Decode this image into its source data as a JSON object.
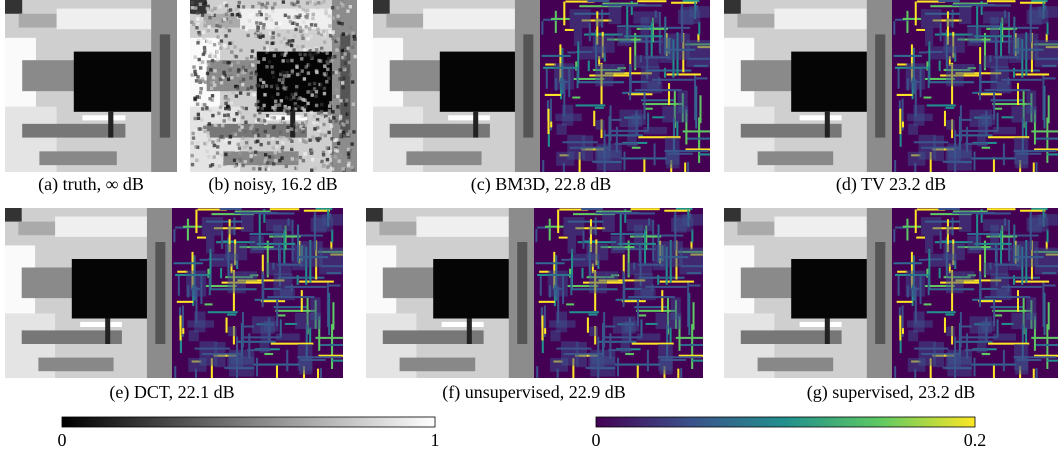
{
  "panels": [
    {
      "caption": "(a) truth, ∞ dB"
    },
    {
      "caption": "(b) noisy, 16.2 dB"
    },
    {
      "caption": "(c) BM3D, 22.8 dB"
    },
    {
      "caption": "(d) TV 23.2 dB"
    },
    {
      "caption": "(e) DCT, 22.1 dB"
    },
    {
      "caption": "(f) unsupervised, 22.9 dB"
    },
    {
      "caption": "(g) supervised, 23.2 dB"
    }
  ],
  "colorbars": [
    {
      "ticks": [
        0,
        1
      ]
    },
    {
      "ticks": [
        0,
        0.2
      ]
    }
  ]
}
